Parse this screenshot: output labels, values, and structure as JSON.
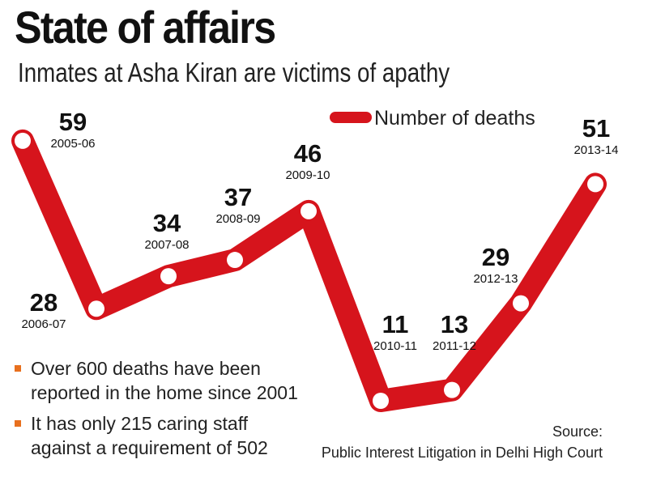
{
  "title": "State of affairs",
  "subtitle": "Inmates at Asha Kiran are victims of apathy",
  "chart_data": {
    "type": "line",
    "title": "State of affairs",
    "subtitle": "Inmates at Asha Kiran are victims of apathy",
    "categories": [
      "2005-06",
      "2006-07",
      "2007-08",
      "2008-09",
      "2009-10",
      "2010-11",
      "2011-12",
      "2012-13",
      "2013-14"
    ],
    "series": [
      {
        "name": "Number of deaths",
        "values": [
          59,
          28,
          34,
          37,
          46,
          11,
          13,
          29,
          51
        ],
        "color": "#d6141c"
      }
    ],
    "xlabel": "",
    "ylabel": "",
    "legend_position": "top-right",
    "grid": false
  },
  "notes": [
    "Over 600 deaths have been reported in the home since 2001",
    "It has only 215 caring staff against a requirement of 502"
  ],
  "source": {
    "label": "Source:",
    "text": "Public Interest Litigation in Delhi High Court"
  },
  "colors": {
    "line": "#d6141c",
    "marker_fill": "#ffffff",
    "bullet": "#e8701e",
    "text": "#111111"
  }
}
